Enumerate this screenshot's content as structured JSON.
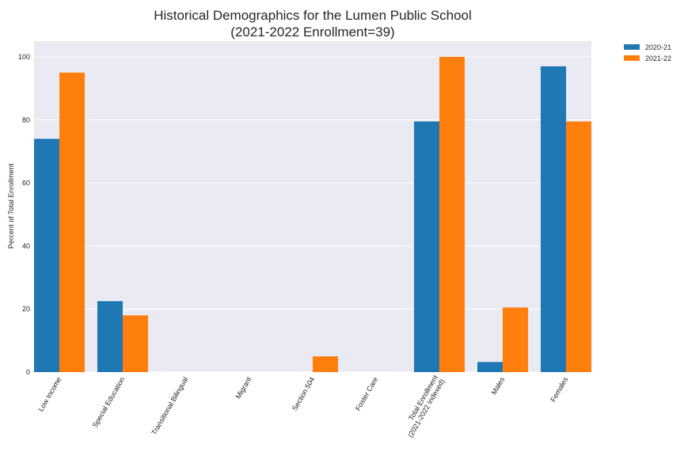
{
  "chart_data": {
    "type": "bar",
    "title_lines": [
      "Historical Demographics for the Lumen Public School",
      "(2021-2022 Enrollment=39)"
    ],
    "xlabel": "",
    "ylabel": "Percent of Total Enrollment",
    "ylim": [
      0,
      105
    ],
    "yticks": [
      0,
      20,
      40,
      60,
      80,
      100
    ],
    "grid": true,
    "legend_position": "outside-top-right",
    "categories": [
      [
        "Low Income"
      ],
      [
        "Special Education"
      ],
      [
        "Transitional Bilingual"
      ],
      [
        "Migrant"
      ],
      [
        "Section 504"
      ],
      [
        "Foster Care"
      ],
      [
        "Total Enrollment",
        "(2021-2022 Indexed)"
      ],
      [
        "Males"
      ],
      [
        "Females"
      ]
    ],
    "series": [
      {
        "name": "2020-21",
        "color": "#1f77b4",
        "values": [
          74,
          22.5,
          0,
          0,
          0,
          0,
          79.5,
          3.2,
          97
        ]
      },
      {
        "name": "2021-22",
        "color": "#ff7f0e",
        "values": [
          95,
          18,
          0,
          0,
          5,
          0,
          100,
          20.5,
          79.5
        ]
      }
    ]
  },
  "colors": {
    "plot_background": "#eaeaf2",
    "grid": "#ffffff",
    "text": "#262626"
  }
}
